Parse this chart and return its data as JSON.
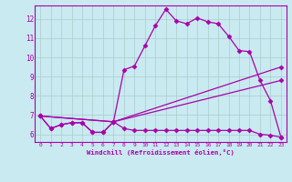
{
  "xlabel": "Windchill (Refroidissement éolien,°C)",
  "bg_color": "#c8eaf0",
  "line_color": "#aa00aa",
  "grid_color": "#aacccc",
  "xlim": [
    -0.5,
    23.5
  ],
  "ylim": [
    5.6,
    12.7
  ],
  "xticks": [
    0,
    1,
    2,
    3,
    4,
    5,
    6,
    7,
    8,
    9,
    10,
    11,
    12,
    13,
    14,
    15,
    16,
    17,
    18,
    19,
    20,
    21,
    22,
    23
  ],
  "yticks": [
    6,
    7,
    8,
    9,
    10,
    11,
    12
  ],
  "line0_x": [
    0,
    1,
    2,
    3,
    4,
    5,
    6,
    7,
    8,
    9,
    10,
    11,
    12,
    13,
    14,
    15,
    16,
    17,
    18,
    19,
    20,
    21,
    22,
    23
  ],
  "line0_y": [
    6.95,
    6.3,
    6.5,
    6.6,
    6.6,
    6.1,
    6.1,
    6.65,
    9.35,
    9.55,
    10.6,
    11.65,
    12.5,
    11.9,
    11.75,
    12.05,
    11.85,
    11.75,
    11.1,
    10.35,
    10.3,
    8.8,
    7.75,
    5.85
  ],
  "line1_x": [
    0,
    1,
    2,
    3,
    4,
    5,
    6,
    7,
    8,
    9,
    10,
    11,
    12,
    13,
    14,
    15,
    16,
    17,
    18,
    19,
    20,
    21,
    22,
    23
  ],
  "line1_y": [
    6.95,
    6.3,
    6.5,
    6.6,
    6.6,
    6.1,
    6.1,
    6.65,
    6.3,
    6.2,
    6.2,
    6.2,
    6.2,
    6.2,
    6.2,
    6.2,
    6.2,
    6.2,
    6.2,
    6.2,
    6.2,
    6.0,
    5.95,
    5.85
  ],
  "line2_x": [
    0,
    7,
    23
  ],
  "line2_y": [
    6.95,
    6.65,
    9.5
  ],
  "line3_x": [
    0,
    7,
    23
  ],
  "line3_y": [
    6.95,
    6.65,
    8.8
  ],
  "marker": "D",
  "marker_size": 2.5,
  "linewidth": 0.9
}
